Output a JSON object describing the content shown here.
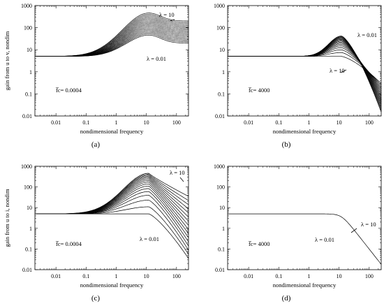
{
  "chart_data": [
    {
      "type": "line",
      "panel_label": "(a)",
      "ylabel": "gain from u to v, nondim",
      "xlabel": "nondimensional frequency",
      "fc_label": "f̅c= 0.0004",
      "lambda_top": "λ = 10",
      "lambda_bottom": "λ = 0.01",
      "xlim": [
        0.002,
        250
      ],
      "ylim": [
        0.01,
        1000
      ],
      "xscale": "log",
      "yscale": "log",
      "x_ticks": [
        "0.01",
        "0.1",
        "1",
        "10",
        "100"
      ],
      "y_ticks": [
        "0.01",
        "0.1",
        "1",
        "10",
        "100",
        "1000"
      ],
      "n_curves": 16,
      "curve_low_freq_gain": 5,
      "peak_frequency": 12,
      "peak_gain_range": [
        45,
        460
      ],
      "gain_at_250_range": [
        3.5,
        35
      ],
      "line_color": "#000000"
    },
    {
      "type": "line",
      "panel_label": "(b)",
      "ylabel": "",
      "xlabel": "nondimensional frequency",
      "fc_label": "f̅c= 4000",
      "lambda_top": "λ = 0.01",
      "lambda_bottom": "λ = 10",
      "xlim": [
        0.002,
        250
      ],
      "ylim": [
        0.01,
        1000
      ],
      "xscale": "log",
      "yscale": "log",
      "x_ticks": [
        "0.01",
        "0.1",
        "1",
        "10",
        "100"
      ],
      "y_ticks": [
        "0.01",
        "0.1",
        "1",
        "10",
        "100",
        "1000"
      ],
      "n_curves": 16,
      "curve_low_freq_gain": 5,
      "peak_frequency": 12,
      "peak_gain_range": [
        5,
        42
      ],
      "gain_at_250_range": [
        0.015,
        0.3
      ],
      "line_color": "#000000"
    },
    {
      "type": "line",
      "panel_label": "(c)",
      "ylabel": "gain from u to i, nondim",
      "xlabel": "nondimensional frequency",
      "fc_label": "f̅c= 0.0004",
      "lambda_top": "λ = 10",
      "lambda_bottom": "λ = 0.01",
      "xlim": [
        0.002,
        250
      ],
      "ylim": [
        0.01,
        1000
      ],
      "xscale": "log",
      "yscale": "log",
      "x_ticks": [
        "0.01",
        "0.1",
        "1",
        "10",
        "100"
      ],
      "y_ticks": [
        "0.01",
        "0.1",
        "1",
        "10",
        "100",
        "1000"
      ],
      "n_curves": 16,
      "curve_low_freq_gain": 5,
      "peak_frequency": 12,
      "peak_gain_range": [
        5,
        460
      ],
      "gain_at_250_range": [
        0.035,
        35
      ],
      "line_color": "#000000"
    },
    {
      "type": "line",
      "panel_label": "(d)",
      "ylabel": "",
      "xlabel": "nondimensional frequency",
      "fc_label": "f̅c= 4000",
      "lambda_top": "λ = 10",
      "lambda_bottom": "λ = 0.01",
      "xlim": [
        0.002,
        250
      ],
      "ylim": [
        0.01,
        1000
      ],
      "xscale": "log",
      "yscale": "log",
      "x_ticks": [
        "0.01",
        "0.1",
        "1",
        "10",
        "100"
      ],
      "y_ticks": [
        "0.01",
        "0.1",
        "1",
        "10",
        "100",
        "1000"
      ],
      "n_curves": 1,
      "curve_low_freq_gain": 5,
      "corner_frequency": 12,
      "gain_at_250": 0.015,
      "line_color": "#000000"
    }
  ]
}
